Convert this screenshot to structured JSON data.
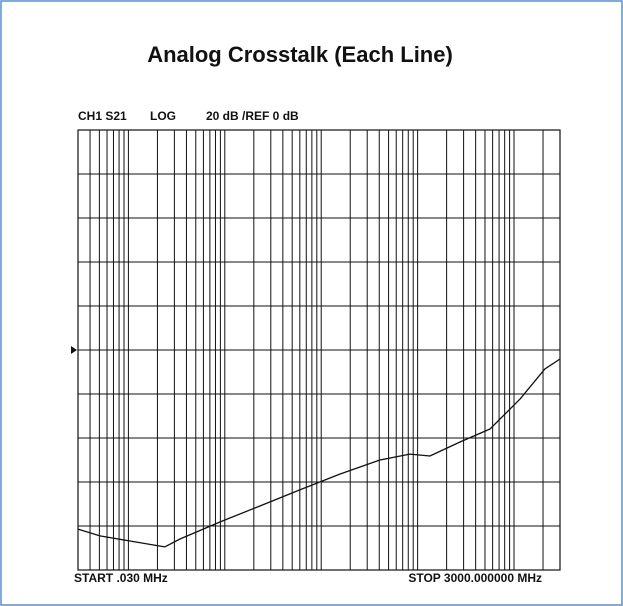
{
  "chart_data": {
    "type": "line",
    "title": "Analog Crosstalk (Each Line)",
    "header": {
      "channel": "CH1 S21",
      "format": "LOG",
      "scale": "20 dB /REF 0 dB"
    },
    "start_label": "START .030 MHz",
    "stop_label": "STOP 3000.000000 MHz",
    "xscale": "log",
    "xlim": [
      0.03,
      3000
    ],
    "xticks": [
      0.04,
      0.05,
      0.06,
      0.07,
      0.08,
      0.09,
      0.1,
      0.2,
      0.3,
      0.4,
      0.5,
      0.6,
      0.7,
      0.8,
      0.9,
      1,
      2,
      3,
      4,
      5,
      6,
      7,
      8,
      9,
      10,
      20,
      30,
      40,
      50,
      60,
      70,
      80,
      90,
      100,
      200,
      300,
      400,
      500,
      600,
      700,
      800,
      900,
      1000,
      2000
    ],
    "ylim": [
      -100,
      100
    ],
    "yticks": [
      -100,
      -80,
      -60,
      -40,
      -20,
      0,
      20,
      40,
      60,
      80,
      100
    ],
    "ref_level": 0,
    "grid": true,
    "x": [
      0.03,
      0.0507,
      0.104,
      0.238,
      0.343,
      0.89,
      2.31,
      6.0,
      15.6,
      40.6,
      83,
      134,
      275,
      563,
      1154,
      2094,
      3000
    ],
    "series": [
      {
        "color": "#111111",
        "values": [
          -81.4,
          -84.5,
          -86.8,
          -89.5,
          -85.9,
          -78.2,
          -70.9,
          -63.6,
          -56.4,
          -50,
          -47.3,
          -48.2,
          -41.8,
          -35.9,
          -22.3,
          -8.6,
          -4.1
        ]
      }
    ]
  }
}
